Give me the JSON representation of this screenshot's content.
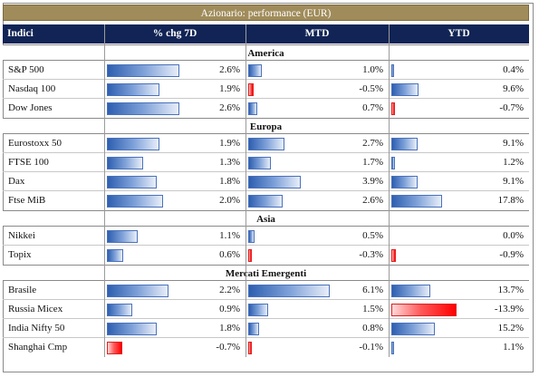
{
  "title": "Azionario: performance (EUR)",
  "headers": {
    "indici": "Indici",
    "chg7d": "% chg 7D",
    "mtd": "MTD",
    "ytd": "YTD"
  },
  "colors": {
    "title_bg": "#a08c5b",
    "header_bg": "#112455",
    "positive_bar": "#4a72bb",
    "negative_bar": "#ff0000"
  },
  "sections": [
    {
      "label": "America",
      "rows": [
        {
          "name": "S&P 500",
          "chg7d": "2.6%",
          "mtd": "1.0%",
          "ytd": "0.4%",
          "v7": 2.6,
          "vm": 1.0,
          "vy": 0.4
        },
        {
          "name": "Nasdaq 100",
          "chg7d": "1.9%",
          "mtd": "-0.5%",
          "ytd": "9.6%",
          "v7": 1.9,
          "vm": -0.5,
          "vy": 9.6
        },
        {
          "name": "Dow Jones",
          "chg7d": "2.6%",
          "mtd": "0.7%",
          "ytd": "-0.7%",
          "v7": 2.6,
          "vm": 0.7,
          "vy": -0.7
        }
      ]
    },
    {
      "label": "Europa",
      "rows": [
        {
          "name": "Eurostoxx 50",
          "chg7d": "1.9%",
          "mtd": "2.7%",
          "ytd": "9.1%",
          "v7": 1.9,
          "vm": 2.7,
          "vy": 9.1
        },
        {
          "name": "FTSE 100",
          "chg7d": "1.3%",
          "mtd": "1.7%",
          "ytd": "1.2%",
          "v7": 1.3,
          "vm": 1.7,
          "vy": 1.2
        },
        {
          "name": "Dax",
          "chg7d": "1.8%",
          "mtd": "3.9%",
          "ytd": "9.1%",
          "v7": 1.8,
          "vm": 3.9,
          "vy": 9.1
        },
        {
          "name": "Ftse MiB",
          "chg7d": "2.0%",
          "mtd": "2.6%",
          "ytd": "17.8%",
          "v7": 2.0,
          "vm": 2.6,
          "vy": 17.8
        }
      ]
    },
    {
      "label": "Asia",
      "rows": [
        {
          "name": "Nikkei",
          "chg7d": "1.1%",
          "mtd": "0.5%",
          "ytd": "0.0%",
          "v7": 1.1,
          "vm": 0.5,
          "vy": 0.0
        },
        {
          "name": "Topix",
          "chg7d": "0.6%",
          "mtd": "-0.3%",
          "ytd": "-0.9%",
          "v7": 0.6,
          "vm": -0.3,
          "vy": -0.9
        }
      ]
    },
    {
      "label": "Mercati Emergenti",
      "rows": [
        {
          "name": "Brasile",
          "chg7d": "2.2%",
          "mtd": "6.1%",
          "ytd": "13.7%",
          "v7": 2.2,
          "vm": 6.1,
          "vy": 13.7
        },
        {
          "name": "Russia Micex",
          "chg7d": "0.9%",
          "mtd": "1.5%",
          "ytd": "-13.9%",
          "v7": 0.9,
          "vm": 1.5,
          "vy": -13.9
        },
        {
          "name": "India Nifty 50",
          "chg7d": "1.8%",
          "mtd": "0.8%",
          "ytd": "15.2%",
          "v7": 1.8,
          "vm": 0.8,
          "vy": 15.2
        },
        {
          "name": "Shanghai Cmp",
          "chg7d": "-0.7%",
          "mtd": "-0.1%",
          "ytd": "1.1%",
          "v7": -0.7,
          "vm": -0.1,
          "vy": 1.1
        }
      ]
    }
  ]
}
